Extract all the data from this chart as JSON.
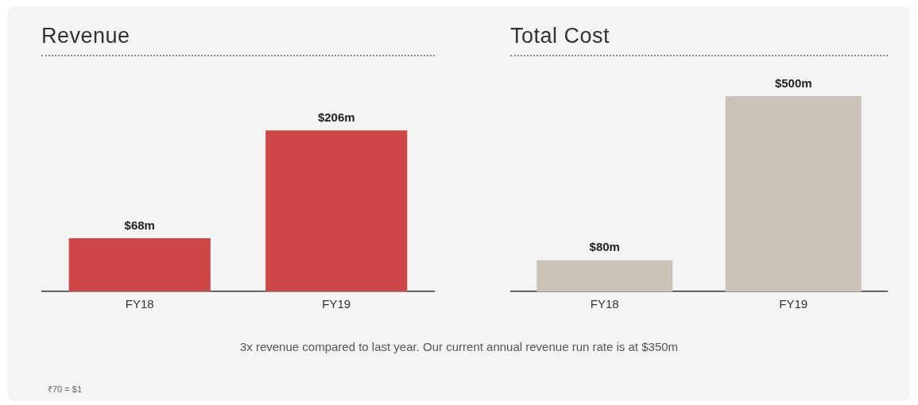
{
  "chart_data": [
    {
      "type": "bar",
      "title": "Revenue",
      "categories": [
        "FY18",
        "FY19"
      ],
      "values": [
        68,
        206
      ],
      "color": "#cc4646",
      "data_labels": true,
      "value_labels": [
        "$68m",
        "$206m"
      ],
      "grid": false,
      "legend": false,
      "tick_labels": "x",
      "annotations": [
        "3x revenue compared to last year. Our current annual revenue run rate is at $350m",
        "₹70 = $1"
      ]
    },
    {
      "type": "bar",
      "title": "Total Cost",
      "categories": [
        "FY18",
        "FY19"
      ],
      "values": [
        80,
        500
      ],
      "color": "#cbc3b7",
      "data_labels": true,
      "value_labels": [
        "$80m",
        "$500m"
      ],
      "grid": false,
      "legend": false,
      "tick_labels": "x"
    }
  ]
}
